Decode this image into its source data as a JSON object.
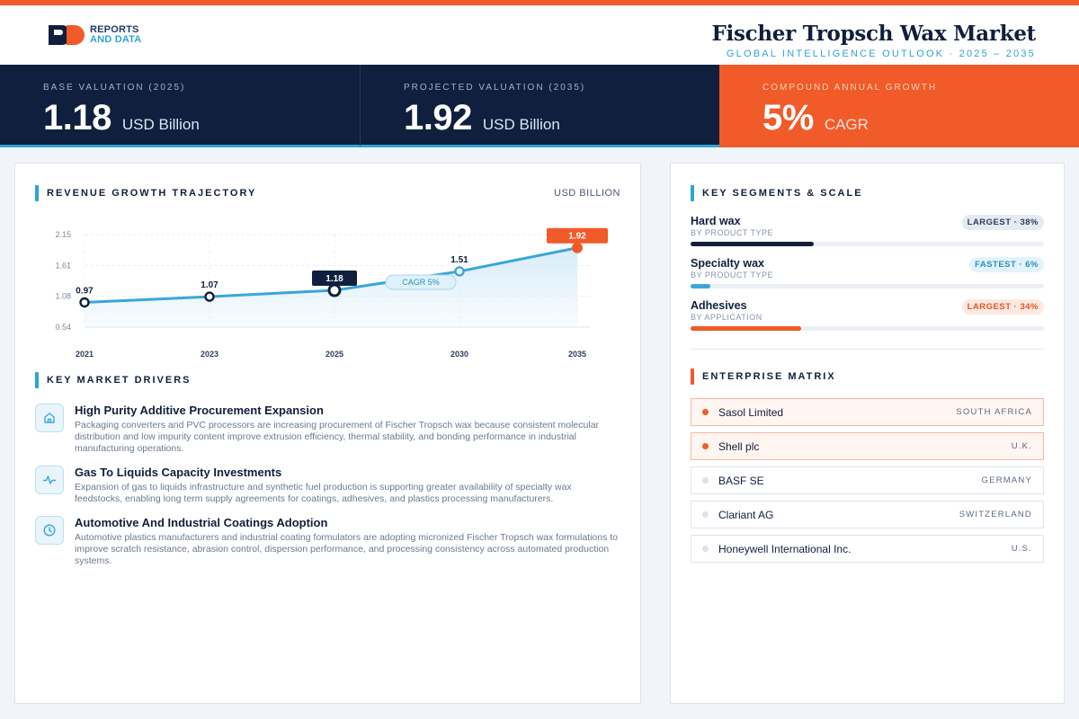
{
  "brand": {
    "line1": "REPORTS",
    "line2": "AND DATA"
  },
  "header": {
    "title": "Fischer Tropsch Wax Market",
    "subtitle": "GLOBAL INTELLIGENCE OUTLOOK  ·  2025 – 2035"
  },
  "kpis": [
    {
      "label": "BASE VALUATION (2025)",
      "value": "1.18",
      "unit": "USD Billion"
    },
    {
      "label": "PROJECTED VALUATION (2035)",
      "value": "1.92",
      "unit": "USD Billion"
    },
    {
      "label": "COMPOUND ANNUAL GROWTH",
      "value": "5%",
      "unit": "CAGR"
    }
  ],
  "revenue": {
    "title": "REVENUE GROWTH TRAJECTORY",
    "unit": "USD BILLION",
    "cagr_label": "CAGR 5%"
  },
  "chart_data": {
    "type": "area",
    "x": [
      "2021",
      "2023",
      "2025",
      "2030",
      "2035"
    ],
    "values": [
      0.97,
      1.07,
      1.18,
      1.51,
      1.92
    ],
    "data_labels": [
      "0.97",
      "1.07",
      "1.18",
      "1.51",
      "1.92"
    ],
    "y_ticks": [
      "2.15",
      "1.61",
      "1.08",
      "0.54"
    ],
    "ylim": [
      0.54,
      2.15
    ],
    "grid": true,
    "highlight": {
      "base_index": 2,
      "end_index": 4
    },
    "colors": {
      "line": "#3aa6da",
      "fill": "#d6ecf8",
      "base": "#0f1f3d",
      "end": "#f15a29"
    }
  },
  "drivers": {
    "title": "KEY MARKET DRIVERS",
    "items": [
      {
        "icon": "home-icon",
        "title": "High Purity Additive Procurement Expansion",
        "desc": "Packaging converters and PVC processors are increasing procurement of Fischer Tropsch wax because consistent molecular distribution and low impurity content improve extrusion efficiency, thermal stability, and bonding performance in industrial manufacturing operations."
      },
      {
        "icon": "activity-icon",
        "title": "Gas To Liquids Capacity Investments",
        "desc": "Expansion of gas to liquids infrastructure and synthetic fuel production is supporting greater availability of specialty wax feedstocks, enabling long term supply agreements for coatings, adhesives, and plastics processing manufacturers."
      },
      {
        "icon": "clock-icon",
        "title": "Automotive And Industrial Coatings Adoption",
        "desc": "Automotive plastics manufacturers and industrial coating formulators are adopting micronized Fischer Tropsch wax formulations to improve scratch resistance, abrasion control, dispersion performance, and processing consistency across automated production systems."
      }
    ]
  },
  "segments": {
    "title": "KEY SEGMENTS & SCALE",
    "items": [
      {
        "name": "Hard wax",
        "sub": "BY PRODUCT TYPE",
        "badge": "LARGEST · 38%",
        "share": 38,
        "color": "#0f1f3d",
        "badge_style": "navy"
      },
      {
        "name": "Specialty wax",
        "sub": "BY PRODUCT TYPE",
        "badge": "FASTEST · 6%",
        "share": 6,
        "color": "#3aa6da",
        "badge_style": "blue"
      },
      {
        "name": "Adhesives",
        "sub": "BY APPLICATION",
        "badge": "LARGEST · 34%",
        "share": 34,
        "color": "#f15a29",
        "badge_style": "orange"
      }
    ]
  },
  "matrix": {
    "title": "ENTERPRISE MATRIX",
    "rows": [
      {
        "name": "Sasol Limited",
        "country": "SOUTH AFRICA",
        "highlight": true
      },
      {
        "name": "Shell plc",
        "country": "U.K.",
        "highlight": true
      },
      {
        "name": "BASF SE",
        "country": "GERMANY",
        "highlight": false
      },
      {
        "name": "Clariant AG",
        "country": "SWITZERLAND",
        "highlight": false
      },
      {
        "name": "Honeywell International Inc.",
        "country": "U.S.",
        "highlight": false
      }
    ]
  }
}
